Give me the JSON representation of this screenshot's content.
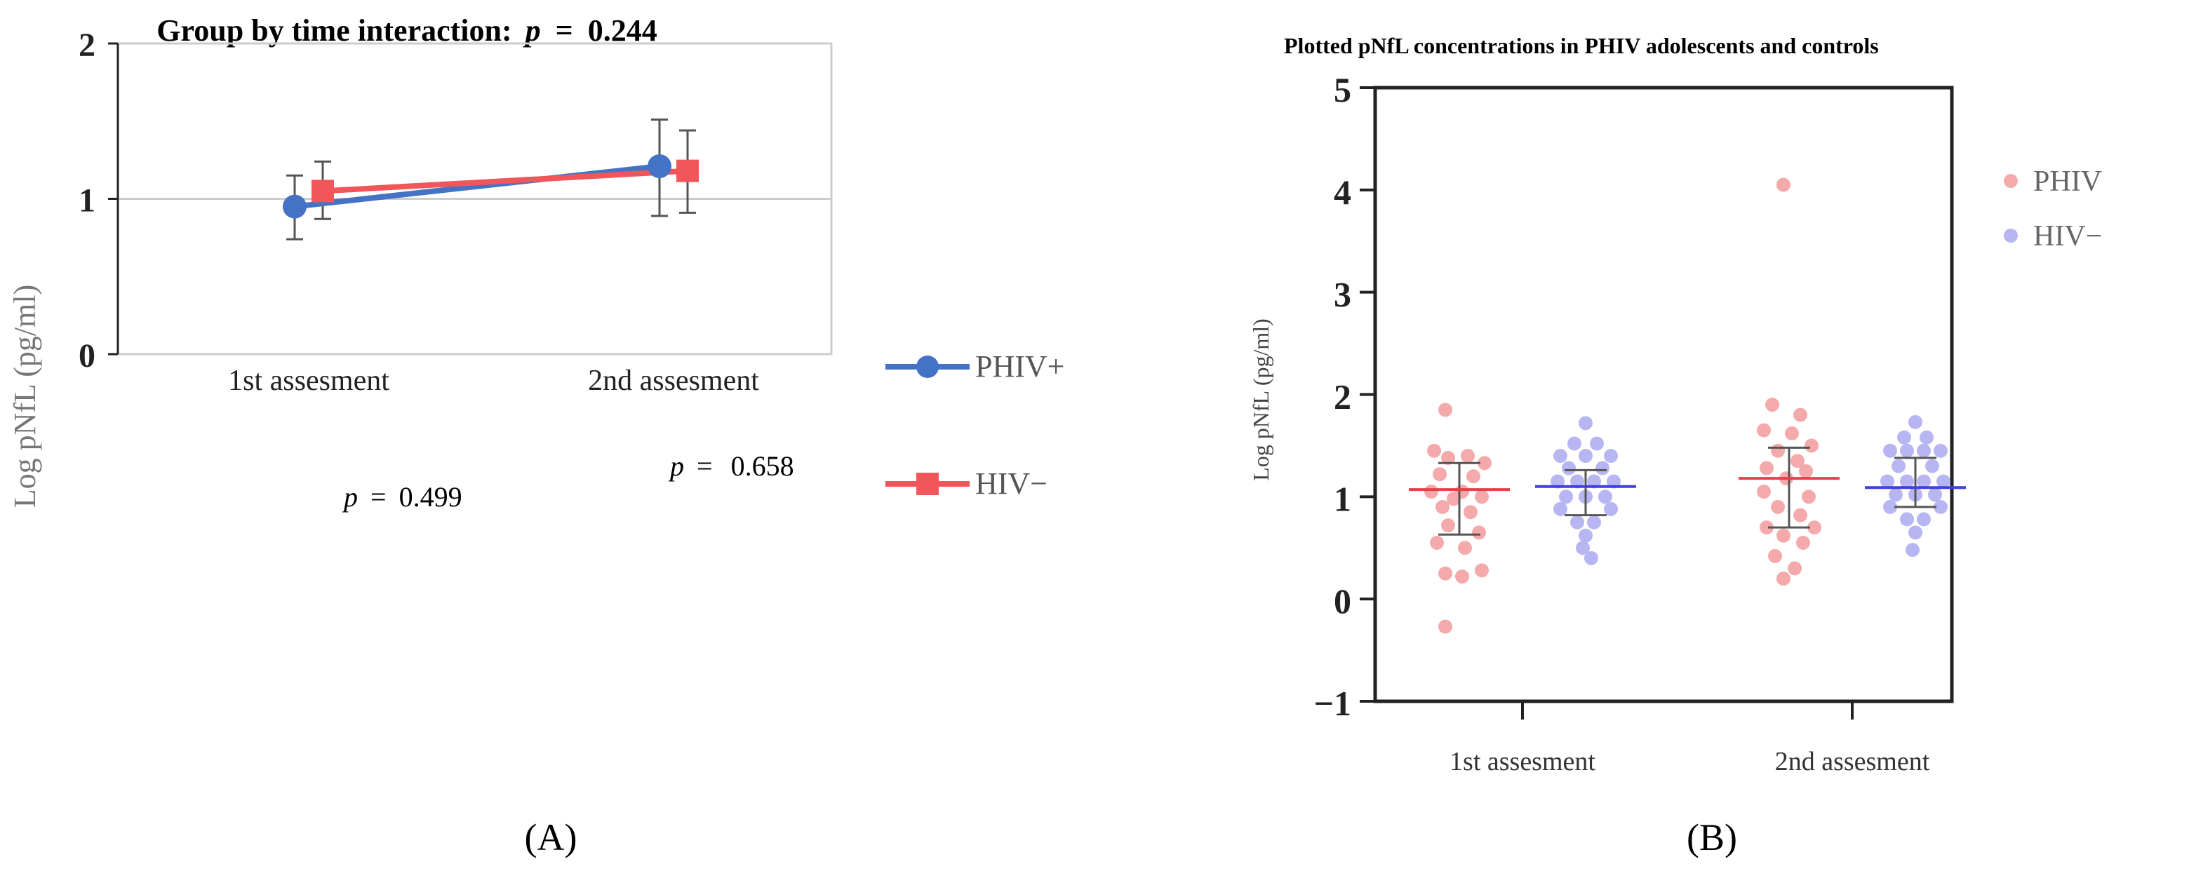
{
  "panels": [
    {
      "panel_label": "(A)",
      "title_prefix": "Group by time interaction:",
      "title_p_symbol": "p",
      "title_p_eq": "=",
      "title_p_value": "0.244",
      "ylabel": "Log pNfL (pg/ml)",
      "annotations": [
        {
          "p": "p",
          "eq": "=",
          "value": "0.499"
        },
        {
          "p": "p",
          "eq": "=",
          "value": "0.658"
        }
      ],
      "legend": [
        "PHIV+",
        "HIV−"
      ]
    },
    {
      "panel_label": "(B)",
      "title": "Plotted pNfL concentrations in PHIV adolescents and controls",
      "ylabel": "Log pNfL (pg/ml)",
      "legend": [
        "PHIV",
        "HIV−"
      ]
    }
  ],
  "colors": {
    "phiv_line": "#4472c4",
    "hiv_line": "#f0565a",
    "phiv_dot": "#f4aaaa",
    "hiv_dot": "#b8b6f2",
    "phiv_mean": "#e8404a",
    "hiv_mean": "#4040e0",
    "errorbar": "#555555",
    "axis": "#222222",
    "grid": "#cccccc"
  },
  "chart_data": [
    {
      "type": "line",
      "title": "Group by time interaction: p = 0.244",
      "xlabel": "",
      "ylabel": "Log pNfL (pg/ml)",
      "categories": [
        "1st assesment",
        "2nd assesment"
      ],
      "ylim": [
        0,
        2
      ],
      "yticks": [
        0,
        1,
        2
      ],
      "grid_y": [
        1
      ],
      "series": [
        {
          "name": "PHIV+",
          "marker": "circle",
          "values": [
            0.95,
            1.21
          ],
          "err_low": [
            0.74,
            0.89
          ],
          "err_high": [
            1.15,
            1.51
          ]
        },
        {
          "name": "HIV−",
          "marker": "square",
          "values": [
            1.05,
            1.18
          ],
          "err_low": [
            0.87,
            0.91
          ],
          "err_high": [
            1.24,
            1.44
          ]
        }
      ],
      "legend_position": "right"
    },
    {
      "type": "scatter",
      "title": "Plotted pNfL concentrations in PHIV adolescents and controls",
      "xlabel": "",
      "ylabel": "Log pNfL (pg/ml)",
      "categories": [
        "1st assesment",
        "2nd assesment"
      ],
      "ylim": [
        -1,
        5
      ],
      "yticks": [
        -1,
        0,
        1,
        2,
        3,
        4,
        5
      ],
      "groups": [
        {
          "name": "PHIV",
          "category": "1st assesment",
          "offset": -1,
          "mean": 1.07,
          "sd_low": 0.63,
          "sd_high": 1.33,
          "points": [
            [
              -0.9,
              1.45
            ],
            [
              -0.4,
              1.38
            ],
            [
              0.3,
              1.4
            ],
            [
              0.9,
              1.33
            ],
            [
              -0.5,
              1.85
            ],
            [
              -0.7,
              1.22
            ],
            [
              0.5,
              1.2
            ],
            [
              -1.0,
              1.05
            ],
            [
              0.1,
              1.05
            ],
            [
              0.8,
              1.0
            ],
            [
              -0.2,
              0.98
            ],
            [
              -0.6,
              0.9
            ],
            [
              0.4,
              0.85
            ],
            [
              -0.4,
              0.72
            ],
            [
              0.7,
              0.65
            ],
            [
              -0.8,
              0.55
            ],
            [
              0.2,
              0.5
            ],
            [
              -0.5,
              0.25
            ],
            [
              0.1,
              0.22
            ],
            [
              0.8,
              0.28
            ],
            [
              -0.5,
              -0.27
            ]
          ]
        },
        {
          "name": "HIV−",
          "category": "1st assesment",
          "offset": 1,
          "mean": 1.1,
          "sd_low": 0.82,
          "sd_high": 1.26,
          "points": [
            [
              0.0,
              1.72
            ],
            [
              -0.4,
              1.52
            ],
            [
              0.4,
              1.52
            ],
            [
              -0.9,
              1.4
            ],
            [
              0.0,
              1.4
            ],
            [
              0.9,
              1.4
            ],
            [
              -0.6,
              1.28
            ],
            [
              0.6,
              1.28
            ],
            [
              -1.0,
              1.15
            ],
            [
              -0.3,
              1.15
            ],
            [
              0.3,
              1.15
            ],
            [
              1.0,
              1.15
            ],
            [
              -0.7,
              1.0
            ],
            [
              0.0,
              1.0
            ],
            [
              0.7,
              1.0
            ],
            [
              -0.9,
              0.88
            ],
            [
              0.9,
              0.88
            ],
            [
              -0.3,
              0.75
            ],
            [
              0.3,
              0.75
            ],
            [
              0.0,
              0.62
            ],
            [
              -0.1,
              0.5
            ],
            [
              0.2,
              0.4
            ]
          ]
        },
        {
          "name": "PHIV",
          "category": "2nd assesment",
          "offset": -1,
          "mean": 1.18,
          "sd_low": 0.7,
          "sd_high": 1.48,
          "points": [
            [
              -0.2,
              4.05
            ],
            [
              -0.6,
              1.9
            ],
            [
              0.4,
              1.8
            ],
            [
              -0.9,
              1.65
            ],
            [
              0.1,
              1.62
            ],
            [
              0.8,
              1.5
            ],
            [
              -0.4,
              1.45
            ],
            [
              0.3,
              1.35
            ],
            [
              -0.8,
              1.28
            ],
            [
              0.6,
              1.25
            ],
            [
              -0.1,
              1.18
            ],
            [
              -0.9,
              1.05
            ],
            [
              0.7,
              1.0
            ],
            [
              -0.4,
              0.9
            ],
            [
              0.4,
              0.82
            ],
            [
              -0.8,
              0.7
            ],
            [
              0.9,
              0.7
            ],
            [
              -0.2,
              0.62
            ],
            [
              0.5,
              0.55
            ],
            [
              -0.5,
              0.42
            ],
            [
              0.2,
              0.3
            ],
            [
              -0.2,
              0.2
            ]
          ]
        },
        {
          "name": "HIV−",
          "category": "2nd assesment",
          "offset": 1,
          "mean": 1.09,
          "sd_low": 0.9,
          "sd_high": 1.38,
          "points": [
            [
              0.0,
              1.73
            ],
            [
              -0.4,
              1.58
            ],
            [
              0.4,
              1.58
            ],
            [
              -0.9,
              1.45
            ],
            [
              -0.3,
              1.45
            ],
            [
              0.3,
              1.45
            ],
            [
              0.9,
              1.45
            ],
            [
              -0.6,
              1.3
            ],
            [
              0.6,
              1.3
            ],
            [
              -1.0,
              1.15
            ],
            [
              -0.3,
              1.15
            ],
            [
              0.3,
              1.15
            ],
            [
              1.0,
              1.15
            ],
            [
              -0.7,
              1.02
            ],
            [
              0.0,
              1.02
            ],
            [
              0.7,
              1.02
            ],
            [
              -0.9,
              0.9
            ],
            [
              0.9,
              0.9
            ],
            [
              -0.3,
              0.78
            ],
            [
              0.3,
              0.78
            ],
            [
              0.0,
              0.65
            ],
            [
              -0.1,
              0.48
            ]
          ]
        }
      ],
      "legend_position": "right"
    }
  ]
}
